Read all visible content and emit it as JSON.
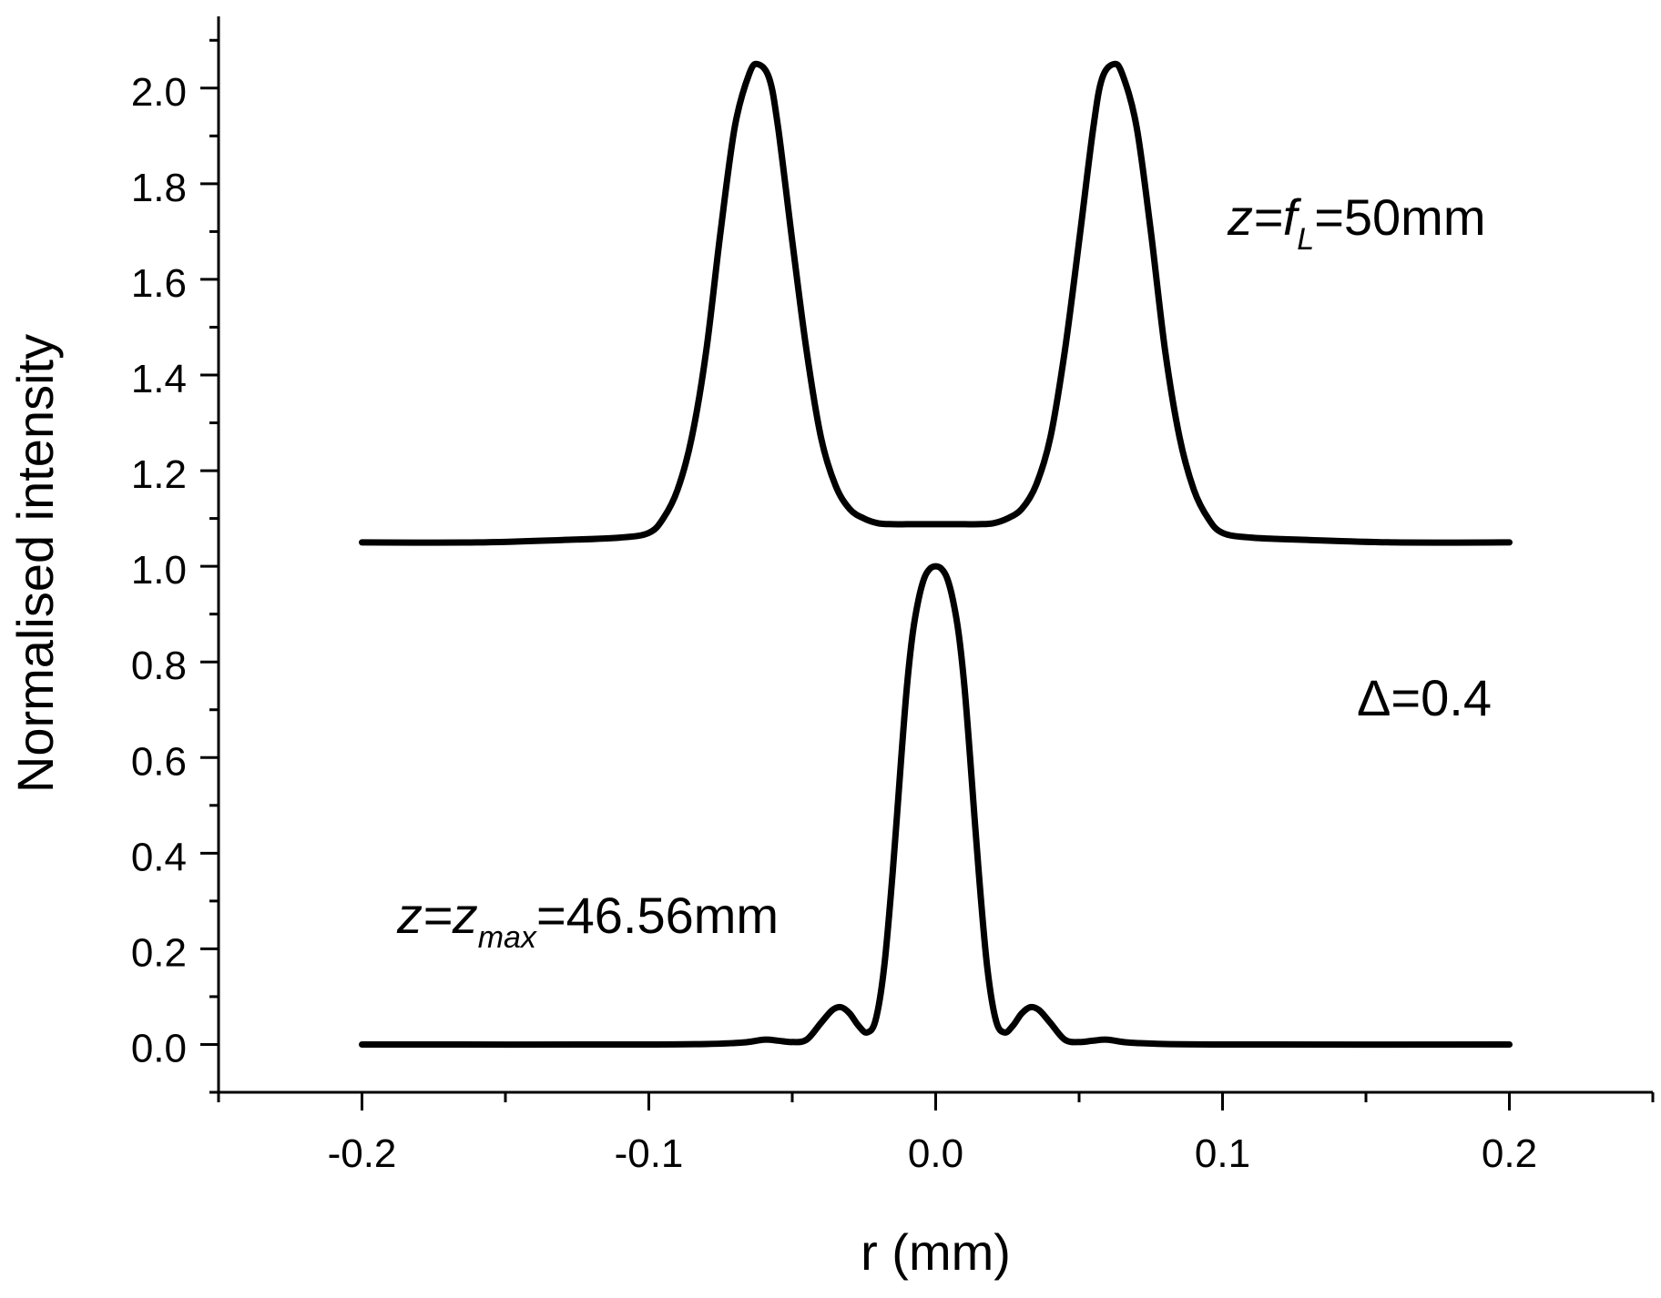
{
  "chart_data": {
    "type": "line",
    "xlabel": "r (mm)",
    "ylabel": "Normalised intensity",
    "xlim": [
      -0.25,
      0.25
    ],
    "ylim": [
      -0.1,
      2.15
    ],
    "x_ticks": [
      -0.2,
      -0.1,
      0.0,
      0.1,
      0.2
    ],
    "x_tick_labels": [
      "-0.2",
      "-0.1",
      "0.0",
      "0.1",
      "0.2"
    ],
    "y_ticks": [
      0.0,
      0.2,
      0.4,
      0.6,
      0.8,
      1.0,
      1.2,
      1.4,
      1.6,
      1.8,
      2.0
    ],
    "y_tick_labels": [
      "0.0",
      "0.2",
      "0.4",
      "0.6",
      "0.8",
      "1.0",
      "1.2",
      "1.4",
      "1.6",
      "1.8",
      "2.0"
    ],
    "grid": false,
    "legend": "none",
    "line_color": "#000000",
    "annotations": {
      "top_curve": {
        "prefix": "z=f",
        "sub": "L",
        "suffix": "=50mm"
      },
      "bottom_curve": {
        "prefix": "z=z",
        "sub": "max",
        "suffix": "=46.56mm"
      },
      "delta": "Δ=0.4"
    },
    "series": [
      {
        "x": [
          -0.2,
          -0.16,
          -0.13,
          -0.11,
          -0.1,
          -0.095,
          -0.09,
          -0.085,
          -0.08,
          -0.075,
          -0.07,
          -0.065,
          -0.062,
          -0.058,
          -0.055,
          -0.05,
          -0.045,
          -0.04,
          -0.035,
          -0.03,
          -0.025,
          -0.02,
          -0.015,
          -0.01,
          -0.005,
          0.0,
          0.005,
          0.01,
          0.015,
          0.02,
          0.025,
          0.03,
          0.035,
          0.04,
          0.045,
          0.05,
          0.055,
          0.058,
          0.062,
          0.065,
          0.07,
          0.075,
          0.08,
          0.085,
          0.09,
          0.095,
          0.1,
          0.11,
          0.13,
          0.16,
          0.2
        ],
        "values": [
          1.05,
          1.05,
          1.055,
          1.06,
          1.07,
          1.1,
          1.16,
          1.27,
          1.45,
          1.7,
          1.92,
          2.03,
          2.05,
          2.02,
          1.92,
          1.68,
          1.45,
          1.27,
          1.17,
          1.12,
          1.1,
          1.09,
          1.088,
          1.088,
          1.088,
          1.088,
          1.088,
          1.088,
          1.088,
          1.09,
          1.1,
          1.12,
          1.17,
          1.27,
          1.45,
          1.68,
          1.92,
          2.02,
          2.05,
          2.03,
          1.92,
          1.7,
          1.45,
          1.27,
          1.16,
          1.1,
          1.07,
          1.06,
          1.055,
          1.05,
          1.05
        ]
      },
      {
        "x": [
          -0.2,
          -0.1,
          -0.07,
          -0.06,
          -0.055,
          -0.05,
          -0.045,
          -0.04,
          -0.036,
          -0.033,
          -0.03,
          -0.027,
          -0.024,
          -0.021,
          -0.018,
          -0.015,
          -0.012,
          -0.01,
          -0.008,
          -0.006,
          -0.004,
          -0.002,
          0.0,
          0.002,
          0.004,
          0.006,
          0.008,
          0.01,
          0.012,
          0.015,
          0.018,
          0.021,
          0.024,
          0.027,
          0.03,
          0.033,
          0.036,
          0.04,
          0.045,
          0.05,
          0.055,
          0.06,
          0.07,
          0.1,
          0.2
        ],
        "values": [
          0.0,
          0.0,
          0.003,
          0.01,
          0.008,
          0.005,
          0.01,
          0.045,
          0.072,
          0.078,
          0.065,
          0.04,
          0.025,
          0.05,
          0.16,
          0.36,
          0.6,
          0.75,
          0.86,
          0.93,
          0.975,
          0.995,
          1.0,
          0.995,
          0.975,
          0.93,
          0.86,
          0.75,
          0.6,
          0.36,
          0.16,
          0.05,
          0.025,
          0.04,
          0.065,
          0.078,
          0.072,
          0.045,
          0.01,
          0.005,
          0.008,
          0.01,
          0.003,
          0.0,
          0.0
        ]
      }
    ]
  }
}
